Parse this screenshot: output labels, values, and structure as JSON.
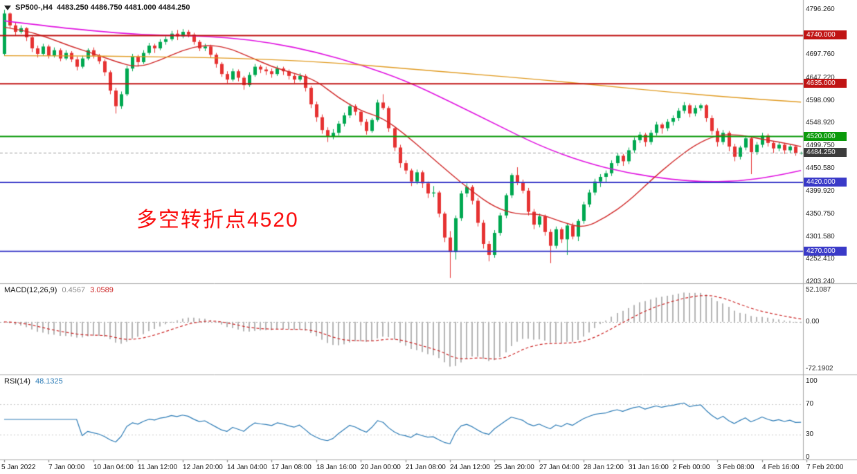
{
  "header": {
    "symbol_timeframe": "SP500-,H4",
    "ohlc_text": "4483.250 4486.750 4481.000 4484.250"
  },
  "annotation": {
    "text": "多空转折点4520",
    "color": "#fa0a0a"
  },
  "price_axis": {
    "labels": [
      "4796.260",
      "4697.760",
      "4647.220",
      "4598.090",
      "4548.920",
      "4499.750",
      "4450.580",
      "4399.920",
      "4350.750",
      "4301.580",
      "4252.410",
      "4203.240"
    ],
    "badges": [
      {
        "label": "4740.000",
        "price": 4740.0,
        "bg": "#c01414"
      },
      {
        "label": "4635.000",
        "price": 4635.0,
        "bg": "#c01414"
      },
      {
        "label": "4520.000",
        "price": 4520.0,
        "bg": "#0a9a0a"
      },
      {
        "label": "4484.250",
        "price": 4484.25,
        "bg": "#3c3c3c"
      },
      {
        "label": "4420.000",
        "price": 4420.0,
        "bg": "#3a3ac8"
      },
      {
        "label": "4270.000",
        "price": 4270.0,
        "bg": "#3a3ac8"
      }
    ]
  },
  "time_axis": {
    "labels": [
      "5 Jan 2022",
      "7 Jan 00:00",
      "10 Jan 04:00",
      "11 Jan 12:00",
      "12 Jan 20:00",
      "14 Jan 04:00",
      "17 Jan 08:00",
      "18 Jan 16:00",
      "20 Jan 00:00",
      "21 Jan 08:00",
      "24 Jan 12:00",
      "25 Jan 20:00",
      "27 Jan 04:00",
      "28 Jan 12:00",
      "31 Jan 16:00",
      "2 Feb 00:00",
      "3 Feb 08:00",
      "4 Feb 16:00",
      "7 Feb 20:00"
    ]
  },
  "indicator_labels": {
    "macd": {
      "name": "MACD(12,26,9)",
      "main_value": "0.4567",
      "signal_value": "3.0589",
      "axis_labels": [
        "52.1087",
        "0.00",
        "-72.1902"
      ]
    },
    "rsi": {
      "name": "RSI(14)",
      "value": "48.1325",
      "axis_labels": [
        "100",
        "70",
        "30",
        "0"
      ]
    }
  },
  "chart_data": {
    "type": "candlestick",
    "symbol": "SP500-",
    "timeframe": "H4",
    "title": "SP500-,H4",
    "ylim": [
      4203.24,
      4796.26
    ],
    "current_price": 4484.25,
    "bars_per_label": 8,
    "x_labels": [
      "5 Jan 2022",
      "7 Jan 00:00",
      "10 Jan 04:00",
      "11 Jan 12:00",
      "12 Jan 20:00",
      "14 Jan 04:00",
      "17 Jan 08:00",
      "18 Jan 16:00",
      "20 Jan 00:00",
      "21 Jan 08:00",
      "24 Jan 12:00",
      "25 Jan 20:00",
      "27 Jan 04:00",
      "28 Jan 12:00",
      "31 Jan 16:00",
      "2 Feb 00:00",
      "3 Feb 08:00",
      "4 Feb 16:00",
      "7 Feb 20:00"
    ],
    "colors": {
      "up": "#00a850",
      "down": "#e63232",
      "ma_fast_red": "#d02828",
      "ma_mid_magenta": "#e012e0",
      "ma_slow_orange": "#e09a20",
      "macd_hist": "#b4b4b4",
      "macd_signal": "#cc2424",
      "rsi_line": "#2a7ab5"
    },
    "hlines": [
      {
        "price": 4740.0,
        "color": "#c01414",
        "label": "4740.000"
      },
      {
        "price": 4635.0,
        "color": "#c01414",
        "label": "4635.000"
      },
      {
        "price": 4520.0,
        "color": "#0a9a0a",
        "label": "4520.000"
      },
      {
        "price": 4420.0,
        "color": "#3a3ac8",
        "label": "4420.000"
      },
      {
        "price": 4270.0,
        "color": "#3a3ac8",
        "label": "4270.000"
      }
    ],
    "ohlc": [
      [
        4700,
        4796,
        4696,
        4788
      ],
      [
        4788,
        4790,
        4756,
        4762
      ],
      [
        4762,
        4768,
        4740,
        4748
      ],
      [
        4748,
        4762,
        4744,
        4756
      ],
      [
        4756,
        4758,
        4728,
        4736
      ],
      [
        4736,
        4740,
        4704,
        4712
      ],
      [
        4712,
        4718,
        4692,
        4700
      ],
      [
        4700,
        4722,
        4696,
        4716
      ],
      [
        4716,
        4720,
        4690,
        4696
      ],
      [
        4696,
        4714,
        4692,
        4708
      ],
      [
        4708,
        4712,
        4684,
        4690
      ],
      [
        4690,
        4708,
        4686,
        4702
      ],
      [
        4702,
        4706,
        4682,
        4688
      ],
      [
        4688,
        4694,
        4664,
        4672
      ],
      [
        4672,
        4696,
        4668,
        4690
      ],
      [
        4690,
        4712,
        4686,
        4708
      ],
      [
        4708,
        4714,
        4690,
        4696
      ],
      [
        4696,
        4700,
        4678,
        4684
      ],
      [
        4684,
        4688,
        4652,
        4660
      ],
      [
        4660,
        4664,
        4612,
        4620
      ],
      [
        4620,
        4626,
        4570,
        4586
      ],
      [
        4586,
        4618,
        4580,
        4612
      ],
      [
        4612,
        4674,
        4608,
        4668
      ],
      [
        4668,
        4700,
        4662,
        4694
      ],
      [
        4694,
        4698,
        4672,
        4682
      ],
      [
        4682,
        4708,
        4678,
        4702
      ],
      [
        4702,
        4724,
        4698,
        4718
      ],
      [
        4718,
        4722,
        4702,
        4712
      ],
      [
        4712,
        4732,
        4708,
        4726
      ],
      [
        4726,
        4738,
        4720,
        4732
      ],
      [
        4732,
        4750,
        4728,
        4744
      ],
      [
        4744,
        4752,
        4730,
        4738
      ],
      [
        4738,
        4754,
        4734,
        4748
      ],
      [
        4748,
        4752,
        4736,
        4742
      ],
      [
        4742,
        4746,
        4720,
        4726
      ],
      [
        4726,
        4730,
        4706,
        4712
      ],
      [
        4712,
        4722,
        4706,
        4716
      ],
      [
        4716,
        4720,
        4692,
        4698
      ],
      [
        4698,
        4702,
        4670,
        4678
      ],
      [
        4678,
        4682,
        4650,
        4656
      ],
      [
        4656,
        4662,
        4636,
        4644
      ],
      [
        4644,
        4668,
        4640,
        4662
      ],
      [
        4662,
        4666,
        4640,
        4648
      ],
      [
        4648,
        4652,
        4622,
        4632
      ],
      [
        4632,
        4660,
        4628,
        4654
      ],
      [
        4654,
        4678,
        4650,
        4672
      ],
      [
        4672,
        4676,
        4658,
        4666
      ],
      [
        4666,
        4672,
        4654,
        4662
      ],
      [
        4662,
        4668,
        4648,
        4656
      ],
      [
        4656,
        4674,
        4652,
        4668
      ],
      [
        4668,
        4672,
        4654,
        4662
      ],
      [
        4662,
        4666,
        4644,
        4652
      ],
      [
        4652,
        4656,
        4636,
        4644
      ],
      [
        4644,
        4658,
        4640,
        4652
      ],
      [
        4652,
        4656,
        4618,
        4626
      ],
      [
        4626,
        4630,
        4582,
        4590
      ],
      [
        4590,
        4596,
        4552,
        4562
      ],
      [
        4562,
        4568,
        4526,
        4534
      ],
      [
        4534,
        4540,
        4508,
        4520
      ],
      [
        4520,
        4536,
        4514,
        4528
      ],
      [
        4528,
        4554,
        4522,
        4548
      ],
      [
        4548,
        4572,
        4542,
        4566
      ],
      [
        4566,
        4592,
        4560,
        4586
      ],
      [
        4586,
        4590,
        4566,
        4574
      ],
      [
        4574,
        4578,
        4544,
        4552
      ],
      [
        4552,
        4558,
        4524,
        4532
      ],
      [
        4532,
        4560,
        4528,
        4556
      ],
      [
        4556,
        4600,
        4552,
        4594
      ],
      [
        4594,
        4612,
        4578,
        4582
      ],
      [
        4582,
        4586,
        4530,
        4538
      ],
      [
        4538,
        4542,
        4488,
        4496
      ],
      [
        4496,
        4502,
        4452,
        4462
      ],
      [
        4462,
        4468,
        4438,
        4446
      ],
      [
        4446,
        4450,
        4412,
        4422
      ],
      [
        4422,
        4448,
        4416,
        4442
      ],
      [
        4442,
        4446,
        4408,
        4418
      ],
      [
        4418,
        4422,
        4386,
        4396
      ],
      [
        4396,
        4412,
        4388,
        4398
      ],
      [
        4398,
        4402,
        4344,
        4352
      ],
      [
        4352,
        4356,
        4290,
        4300
      ],
      [
        4300,
        4314,
        4212,
        4268
      ],
      [
        4268,
        4348,
        4252,
        4342
      ],
      [
        4342,
        4402,
        4336,
        4396
      ],
      [
        4396,
        4418,
        4388,
        4410
      ],
      [
        4410,
        4414,
        4372,
        4380
      ],
      [
        4380,
        4386,
        4324,
        4332
      ],
      [
        4332,
        4338,
        4276,
        4286
      ],
      [
        4286,
        4292,
        4248,
        4262
      ],
      [
        4262,
        4316,
        4256,
        4310
      ],
      [
        4310,
        4354,
        4304,
        4348
      ],
      [
        4348,
        4396,
        4342,
        4392
      ],
      [
        4392,
        4440,
        4386,
        4436
      ],
      [
        4436,
        4453,
        4414,
        4420
      ],
      [
        4420,
        4426,
        4396,
        4402
      ],
      [
        4402,
        4408,
        4348,
        4356
      ],
      [
        4356,
        4362,
        4318,
        4328
      ],
      [
        4328,
        4352,
        4322,
        4346
      ],
      [
        4346,
        4350,
        4304,
        4312
      ],
      [
        4312,
        4318,
        4244,
        4282
      ],
      [
        4282,
        4324,
        4276,
        4318
      ],
      [
        4318,
        4322,
        4288,
        4296
      ],
      [
        4296,
        4330,
        4262,
        4326
      ],
      [
        4326,
        4332,
        4296,
        4302
      ],
      [
        4302,
        4340,
        4292,
        4336
      ],
      [
        4336,
        4378,
        4330,
        4372
      ],
      [
        4372,
        4404,
        4366,
        4398
      ],
      [
        4398,
        4428,
        4392,
        4422
      ],
      [
        4422,
        4438,
        4410,
        4432
      ],
      [
        4432,
        4446,
        4420,
        4440
      ],
      [
        4440,
        4468,
        4434,
        4462
      ],
      [
        4462,
        4484,
        4456,
        4478
      ],
      [
        4478,
        4482,
        4456,
        4466
      ],
      [
        4466,
        4496,
        4460,
        4490
      ],
      [
        4490,
        4518,
        4484,
        4512
      ],
      [
        4512,
        4530,
        4506,
        4524
      ],
      [
        4524,
        4528,
        4498,
        4508
      ],
      [
        4508,
        4534,
        4502,
        4528
      ],
      [
        4528,
        4552,
        4522,
        4546
      ],
      [
        4546,
        4550,
        4526,
        4538
      ],
      [
        4538,
        4558,
        4532,
        4552
      ],
      [
        4552,
        4566,
        4544,
        4560
      ],
      [
        4560,
        4582,
        4554,
        4576
      ],
      [
        4576,
        4595,
        4570,
        4588
      ],
      [
        4588,
        4592,
        4562,
        4570
      ],
      [
        4570,
        4588,
        4564,
        4582
      ],
      [
        4582,
        4592,
        4576,
        4588
      ],
      [
        4588,
        4590,
        4552,
        4560
      ],
      [
        4560,
        4566,
        4524,
        4532
      ],
      [
        4532,
        4538,
        4498,
        4508
      ],
      [
        4508,
        4534,
        4502,
        4528
      ],
      [
        4528,
        4532,
        4488,
        4498
      ],
      [
        4498,
        4504,
        4466,
        4476
      ],
      [
        4476,
        4500,
        4470,
        4496
      ],
      [
        4496,
        4522,
        4490,
        4516
      ],
      [
        4516,
        4520,
        4438,
        4486
      ],
      [
        4486,
        4508,
        4480,
        4502
      ],
      [
        4502,
        4528,
        4496,
        4522
      ],
      [
        4522,
        4526,
        4498,
        4506
      ],
      [
        4506,
        4510,
        4484,
        4494
      ],
      [
        4494,
        4508,
        4488,
        4502
      ],
      [
        4502,
        4506,
        4482,
        4490
      ],
      [
        4490,
        4502,
        4484,
        4498
      ],
      [
        4498,
        4500,
        4478,
        4483.25
      ],
      [
        4483.25,
        4486.75,
        4481,
        4484.25
      ]
    ],
    "moving_averages": [
      {
        "name": "ma-magenta-slow",
        "color": "#e012e0",
        "width": 1.6,
        "points": [
          [
            0,
            4772
          ],
          [
            8,
            4760
          ],
          [
            16,
            4750
          ],
          [
            24,
            4742
          ],
          [
            32,
            4740
          ],
          [
            40,
            4736
          ],
          [
            48,
            4724
          ],
          [
            56,
            4704
          ],
          [
            64,
            4676
          ],
          [
            72,
            4642
          ],
          [
            80,
            4596
          ],
          [
            88,
            4548
          ],
          [
            96,
            4500
          ],
          [
            104,
            4464
          ],
          [
            112,
            4440
          ],
          [
            120,
            4426
          ],
          [
            126,
            4421
          ],
          [
            132,
            4423
          ],
          [
            138,
            4433
          ],
          [
            143,
            4446
          ]
        ]
      },
      {
        "name": "ma-red-fast",
        "color": "#d02828",
        "width": 1.4,
        "points": [
          [
            0,
            4758
          ],
          [
            4,
            4750
          ],
          [
            8,
            4735
          ],
          [
            12,
            4716
          ],
          [
            16,
            4701
          ],
          [
            20,
            4683
          ],
          [
            24,
            4670
          ],
          [
            28,
            4686
          ],
          [
            32,
            4708
          ],
          [
            36,
            4720
          ],
          [
            40,
            4714
          ],
          [
            44,
            4694
          ],
          [
            48,
            4672
          ],
          [
            52,
            4658
          ],
          [
            56,
            4642
          ],
          [
            60,
            4604
          ],
          [
            64,
            4576
          ],
          [
            68,
            4560
          ],
          [
            72,
            4524
          ],
          [
            76,
            4482
          ],
          [
            80,
            4440
          ],
          [
            84,
            4400
          ],
          [
            88,
            4366
          ],
          [
            92,
            4350
          ],
          [
            96,
            4352
          ],
          [
            100,
            4334
          ],
          [
            104,
            4320
          ],
          [
            108,
            4344
          ],
          [
            112,
            4378
          ],
          [
            116,
            4424
          ],
          [
            120,
            4466
          ],
          [
            124,
            4502
          ],
          [
            128,
            4524
          ],
          [
            132,
            4524
          ],
          [
            136,
            4514
          ],
          [
            140,
            4506
          ],
          [
            143,
            4498
          ]
        ]
      },
      {
        "name": "ma-orange-slowest",
        "color": "#e09a20",
        "width": 1.4,
        "points": [
          [
            0,
            4696
          ],
          [
            12,
            4696
          ],
          [
            24,
            4694
          ],
          [
            36,
            4692
          ],
          [
            48,
            4688
          ],
          [
            60,
            4680
          ],
          [
            72,
            4668
          ],
          [
            84,
            4656
          ],
          [
            96,
            4644
          ],
          [
            108,
            4630
          ],
          [
            120,
            4616
          ],
          [
            132,
            4604
          ],
          [
            143,
            4595
          ]
        ]
      }
    ],
    "indicators": [
      {
        "type": "macd",
        "params": [
          12,
          26,
          9
        ],
        "current_main": 0.4567,
        "current_signal": 3.0589,
        "axis_max": "52.1087",
        "axis_zero": "0.00",
        "axis_min": "-72.1902"
      },
      {
        "type": "rsi",
        "params": [
          14
        ],
        "current": 48.1325,
        "levels": [
          30,
          70
        ],
        "scale": [
          0,
          100
        ]
      }
    ]
  }
}
